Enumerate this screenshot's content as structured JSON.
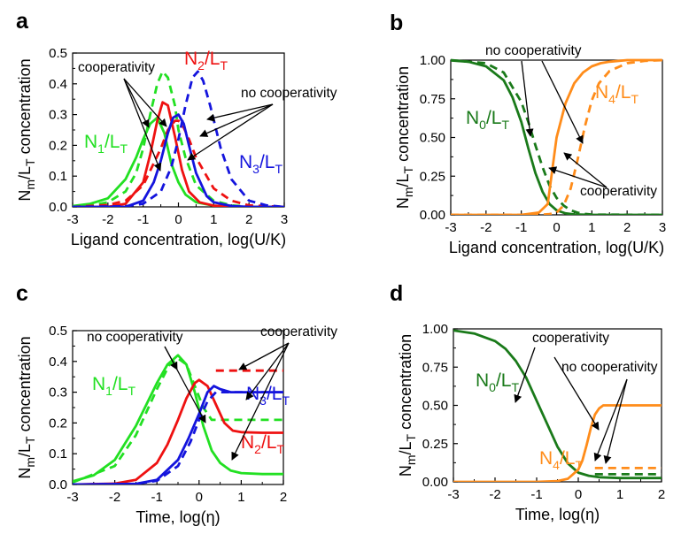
{
  "chart_data": [
    {
      "panel": "a",
      "type": "line",
      "xlabel": "Ligand concentration, log(U/K)",
      "ylabel": {
        "base": "N",
        "sub1": "m",
        "mid": "/L",
        "sub2": "T",
        "tail": " concentration"
      },
      "xlim": [
        -3,
        3
      ],
      "ylim": [
        0,
        0.5
      ],
      "xticks": [
        "-3",
        "-2",
        "-1",
        "0",
        "1",
        "2",
        "3"
      ],
      "yticks": [
        "0.0",
        "0.1",
        "0.2",
        "0.3",
        "0.4",
        "0.5"
      ],
      "series": [
        {
          "name": "N1/LT",
          "style": "solid",
          "color": "#22e022",
          "x": [
            -3.0,
            -2.5,
            -2.0,
            -1.5,
            -1.2,
            -1.0,
            -0.8,
            -0.6,
            -0.4,
            -0.2,
            0.0,
            0.2,
            0.5,
            1.0,
            1.5,
            2.0,
            3.0
          ],
          "y": [
            0.003,
            0.01,
            0.028,
            0.09,
            0.16,
            0.22,
            0.27,
            0.29,
            0.24,
            0.14,
            0.08,
            0.04,
            0.015,
            0.004,
            0.001,
            0.0,
            0.0
          ]
        },
        {
          "name": "N1/LT",
          "style": "dashed",
          "color": "#22e022",
          "x": [
            -3.0,
            -2.5,
            -2.0,
            -1.5,
            -1.2,
            -1.0,
            -0.8,
            -0.6,
            -0.45,
            -0.3,
            -0.1,
            0.0,
            0.2,
            0.5,
            1.0,
            1.5,
            2.0,
            3.0
          ],
          "y": [
            0.001,
            0.004,
            0.015,
            0.05,
            0.11,
            0.19,
            0.3,
            0.4,
            0.44,
            0.42,
            0.33,
            0.25,
            0.16,
            0.07,
            0.02,
            0.005,
            0.001,
            0.0
          ]
        },
        {
          "name": "N2/LT",
          "style": "solid",
          "color": "#ee1111",
          "x": [
            -3.0,
            -2.0,
            -1.5,
            -1.0,
            -0.8,
            -0.6,
            -0.45,
            -0.3,
            -0.1,
            0.1,
            0.3,
            0.6,
            1.0,
            1.5,
            2.0,
            3.0
          ],
          "y": [
            0.0,
            0.0,
            0.01,
            0.08,
            0.17,
            0.28,
            0.34,
            0.33,
            0.23,
            0.12,
            0.05,
            0.015,
            0.004,
            0.001,
            0.0,
            0.0
          ]
        },
        {
          "name": "N2/LT",
          "style": "dashed",
          "color": "#ee1111",
          "x": [
            -3.0,
            -2.0,
            -1.5,
            -1.0,
            -0.5,
            -0.3,
            -0.1,
            0.0,
            0.1,
            0.3,
            0.5,
            1.0,
            1.5,
            2.0,
            3.0
          ],
          "y": [
            0.0,
            0.006,
            0.02,
            0.07,
            0.19,
            0.25,
            0.28,
            0.28,
            0.27,
            0.22,
            0.16,
            0.06,
            0.02,
            0.005,
            0.0
          ]
        },
        {
          "name": "N3/LT",
          "style": "solid",
          "color": "#1414dd",
          "x": [
            -3.0,
            -1.5,
            -1.0,
            -0.7,
            -0.5,
            -0.3,
            -0.15,
            0.0,
            0.15,
            0.3,
            0.5,
            0.8,
            1.0,
            1.5,
            2.0,
            3.0
          ],
          "y": [
            0.0,
            0.0,
            0.02,
            0.08,
            0.15,
            0.24,
            0.29,
            0.3,
            0.27,
            0.2,
            0.11,
            0.035,
            0.015,
            0.003,
            0.0,
            0.0
          ]
        },
        {
          "name": "N3/LT",
          "style": "dashed",
          "color": "#1414dd",
          "x": [
            -3.0,
            -1.5,
            -1.0,
            -0.5,
            -0.2,
            0.0,
            0.2,
            0.4,
            0.55,
            0.7,
            0.9,
            1.2,
            1.5,
            2.0,
            2.5,
            3.0
          ],
          "y": [
            0.0,
            0.002,
            0.01,
            0.05,
            0.13,
            0.22,
            0.33,
            0.42,
            0.44,
            0.41,
            0.33,
            0.19,
            0.09,
            0.02,
            0.005,
            0.0
          ]
        }
      ],
      "labels": [
        {
          "kind": "N",
          "base": "N",
          "s1": "1",
          "mid": "/L",
          "s2": "T",
          "color": "#22e022"
        },
        {
          "kind": "N",
          "base": "N",
          "s1": "2",
          "mid": "/L",
          "s2": "T",
          "color": "#ee1111"
        },
        {
          "kind": "N",
          "base": "N",
          "s1": "3",
          "mid": "/L",
          "s2": "T",
          "color": "#1414dd"
        },
        {
          "kind": "text",
          "text": "cooperativity"
        },
        {
          "kind": "text",
          "text": "no cooperativity"
        }
      ]
    },
    {
      "panel": "b",
      "type": "line",
      "xlabel": "Ligand concentration, log(U/K)",
      "ylabel": {
        "base": "N",
        "sub1": "m",
        "mid": "/L",
        "sub2": "T",
        "tail": " concentration"
      },
      "xlim": [
        -3,
        3
      ],
      "ylim": [
        0,
        1.0
      ],
      "xticks": [
        "-3",
        "-2",
        "-1",
        "0",
        "1",
        "2",
        "3"
      ],
      "yticks": [
        "0.00",
        "0.25",
        "0.50",
        "0.75",
        "1.00"
      ],
      "series": [
        {
          "name": "N0/LT",
          "style": "solid",
          "color": "#1a7a1a",
          "x": [
            -3.0,
            -2.5,
            -2.0,
            -1.5,
            -1.25,
            -1.0,
            -0.8,
            -0.6,
            -0.4,
            -0.2,
            0.0,
            0.25,
            0.5,
            1.0,
            3.0
          ],
          "y": [
            0.998,
            0.99,
            0.96,
            0.87,
            0.76,
            0.6,
            0.43,
            0.27,
            0.15,
            0.07,
            0.03,
            0.01,
            0.003,
            0.0,
            0.0
          ]
        },
        {
          "name": "N0/LT",
          "style": "dashed",
          "color": "#1a7a1a",
          "x": [
            -3.0,
            -2.0,
            -1.5,
            -1.0,
            -0.8,
            -0.6,
            -0.4,
            -0.2,
            0.0,
            0.2,
            0.4,
            0.6,
            0.8,
            1.0,
            3.0
          ],
          "y": [
            1.0,
            0.98,
            0.92,
            0.73,
            0.6,
            0.45,
            0.31,
            0.19,
            0.11,
            0.06,
            0.03,
            0.014,
            0.006,
            0.002,
            0.0
          ]
        },
        {
          "name": "N4/LT",
          "style": "solid",
          "color": "#ff8c1a",
          "x": [
            -3.0,
            -1.0,
            -0.5,
            -0.25,
            0.0,
            0.25,
            0.5,
            0.75,
            1.0,
            1.25,
            1.5,
            2.0,
            2.5,
            3.0
          ],
          "y": [
            0.0,
            0.0,
            0.015,
            0.07,
            0.5,
            0.72,
            0.85,
            0.92,
            0.96,
            0.98,
            0.99,
            1.0,
            1.0,
            1.0
          ]
        },
        {
          "name": "N4/LT",
          "style": "dashed",
          "color": "#ff8c1a",
          "x": [
            -3.0,
            -0.5,
            -0.2,
            0.0,
            0.2,
            0.4,
            0.6,
            0.8,
            1.0,
            1.2,
            1.5,
            2.0,
            2.5,
            3.0
          ],
          "y": [
            0.0,
            0.0,
            0.005,
            0.015,
            0.06,
            0.17,
            0.36,
            0.57,
            0.74,
            0.85,
            0.93,
            0.98,
            0.995,
            1.0
          ]
        }
      ],
      "labels": [
        {
          "kind": "N",
          "base": "N",
          "s1": "0",
          "mid": "/L",
          "s2": "T",
          "color": "#1a7a1a"
        },
        {
          "kind": "N",
          "base": "N",
          "s1": "4",
          "mid": "/L",
          "s2": "T",
          "color": "#ff8c1a"
        },
        {
          "kind": "text",
          "text": "no cooperativity"
        },
        {
          "kind": "text",
          "text": "cooperativity"
        }
      ]
    },
    {
      "panel": "c",
      "type": "line",
      "xlabel": "Time, log(η)",
      "ylabel": {
        "base": "N",
        "sub1": "m",
        "mid": "/L",
        "sub2": "T",
        "tail": " concentration"
      },
      "xlim": [
        -3,
        2
      ],
      "ylim": [
        0,
        0.5
      ],
      "xticks": [
        "-3",
        "-2",
        "-1",
        "0",
        "1",
        "2"
      ],
      "yticks": [
        "0.0",
        "0.1",
        "0.2",
        "0.3",
        "0.4",
        "0.5"
      ],
      "series": [
        {
          "name": "N1/LT",
          "style": "solid",
          "color": "#22e022",
          "x": [
            -3.0,
            -2.5,
            -2.0,
            -1.5,
            -1.0,
            -0.75,
            -0.5,
            -0.3,
            -0.1,
            0.1,
            0.3,
            0.5,
            0.75,
            1.0,
            1.5,
            2.0
          ],
          "y": [
            0.01,
            0.03,
            0.08,
            0.19,
            0.33,
            0.39,
            0.42,
            0.39,
            0.3,
            0.19,
            0.11,
            0.07,
            0.045,
            0.037,
            0.034,
            0.034
          ]
        },
        {
          "name": "N1/LT",
          "style": "dashed",
          "color": "#22e022",
          "x": [
            -3.0,
            -2.0,
            -1.5,
            -1.0,
            -0.7,
            -0.5,
            -0.3,
            -0.1,
            0.1,
            0.3,
            0.5,
            1.0,
            2.0
          ],
          "y": [
            0.007,
            0.06,
            0.16,
            0.31,
            0.39,
            0.41,
            0.39,
            0.32,
            0.25,
            0.21,
            0.21,
            0.21,
            0.21
          ]
        },
        {
          "name": "N2/LT",
          "style": "solid",
          "color": "#ee1111",
          "x": [
            -3.0,
            -2.0,
            -1.5,
            -1.0,
            -0.75,
            -0.5,
            -0.3,
            -0.1,
            0.0,
            0.2,
            0.4,
            0.6,
            0.8,
            1.0,
            1.5,
            2.0
          ],
          "y": [
            0.0,
            0.003,
            0.015,
            0.07,
            0.13,
            0.21,
            0.28,
            0.33,
            0.34,
            0.32,
            0.26,
            0.2,
            0.175,
            0.17,
            0.168,
            0.168
          ]
        },
        {
          "name": "N2/LT",
          "style": "dashed",
          "color": "#ee1111",
          "x": [
            0.4,
            0.7,
            1.0,
            1.5,
            2.0
          ],
          "y": [
            0.37,
            0.37,
            0.37,
            0.37,
            0.37
          ]
        },
        {
          "name": "N3/LT",
          "style": "solid",
          "color": "#1414dd",
          "x": [
            -3.0,
            -1.5,
            -1.0,
            -0.5,
            -0.25,
            0.0,
            0.2,
            0.35,
            0.5,
            0.75,
            1.0,
            1.5,
            2.0
          ],
          "y": [
            0.0,
            0.002,
            0.015,
            0.08,
            0.15,
            0.23,
            0.3,
            0.32,
            0.31,
            0.3,
            0.3,
            0.3,
            0.3
          ]
        },
        {
          "name": "N3/LT",
          "style": "dashed",
          "color": "#1414dd",
          "x": [
            -3.0,
            -1.5,
            -1.0,
            -0.5,
            -0.2,
            0.0,
            0.2,
            0.4,
            0.6,
            1.0,
            1.5,
            2.0
          ],
          "y": [
            0.0,
            0.002,
            0.012,
            0.06,
            0.14,
            0.21,
            0.27,
            0.3,
            0.3,
            0.3,
            0.3,
            0.3
          ]
        }
      ],
      "labels": [
        {
          "kind": "N",
          "base": "N",
          "s1": "1",
          "mid": "/L",
          "s2": "T",
          "color": "#22e022"
        },
        {
          "kind": "N",
          "base": "N",
          "s1": "2",
          "mid": "/L",
          "s2": "T",
          "color": "#ee1111"
        },
        {
          "kind": "N",
          "base": "N",
          "s1": "3",
          "mid": "/L",
          "s2": "T",
          "color": "#1414dd"
        },
        {
          "kind": "text",
          "text": "no cooperativity"
        },
        {
          "kind": "text",
          "text": "cooperativity"
        }
      ]
    },
    {
      "panel": "d",
      "type": "line",
      "xlabel": "Time, log(η)",
      "ylabel": {
        "base": "N",
        "sub1": "m",
        "mid": "/L",
        "sub2": "T",
        "tail": " concentration"
      },
      "xlim": [
        -3,
        2
      ],
      "ylim": [
        0,
        1.0
      ],
      "xticks": [
        "-3",
        "-2",
        "-1",
        "0",
        "1",
        "2"
      ],
      "yticks": [
        "0.00",
        "0.25",
        "0.50",
        "0.75",
        "1.00"
      ],
      "series": [
        {
          "name": "N0/LT",
          "style": "solid",
          "color": "#1a7a1a",
          "x": [
            -3.0,
            -2.5,
            -2.0,
            -1.75,
            -1.5,
            -1.25,
            -1.0,
            -0.75,
            -0.5,
            -0.25,
            0.0,
            0.25,
            0.5,
            1.0,
            1.5,
            2.0
          ],
          "y": [
            0.99,
            0.97,
            0.92,
            0.87,
            0.79,
            0.68,
            0.53,
            0.38,
            0.23,
            0.12,
            0.06,
            0.04,
            0.03,
            0.025,
            0.025,
            0.025
          ]
        },
        {
          "name": "N0/LT",
          "style": "dashed",
          "color": "#1a7a1a",
          "x": [
            0.4,
            0.7,
            1.0,
            1.5,
            2.0
          ],
          "y": [
            0.05,
            0.05,
            0.05,
            0.05,
            0.05
          ]
        },
        {
          "name": "N4/LT",
          "style": "solid",
          "color": "#ff8c1a",
          "x": [
            -3.0,
            -1.0,
            -0.5,
            -0.25,
            0.0,
            0.1,
            0.2,
            0.3,
            0.4,
            0.5,
            0.6,
            0.8,
            1.0,
            1.5,
            2.0
          ],
          "y": [
            0.0,
            0.0,
            0.005,
            0.02,
            0.08,
            0.14,
            0.24,
            0.35,
            0.44,
            0.48,
            0.5,
            0.5,
            0.5,
            0.5,
            0.5
          ]
        },
        {
          "name": "N4/LT",
          "style": "dashed",
          "color": "#ff8c1a",
          "x": [
            0.4,
            0.7,
            1.0,
            1.5,
            2.0
          ],
          "y": [
            0.09,
            0.09,
            0.09,
            0.09,
            0.09
          ]
        }
      ],
      "labels": [
        {
          "kind": "N",
          "base": "N",
          "s1": "0",
          "mid": "/L",
          "s2": "T",
          "color": "#1a7a1a"
        },
        {
          "kind": "N",
          "base": "N",
          "s1": "4",
          "mid": "/L",
          "s2": "T",
          "color": "#ff8c1a"
        },
        {
          "kind": "text",
          "text": "cooperativity"
        },
        {
          "kind": "text",
          "text": "no cooperativity"
        }
      ]
    }
  ]
}
